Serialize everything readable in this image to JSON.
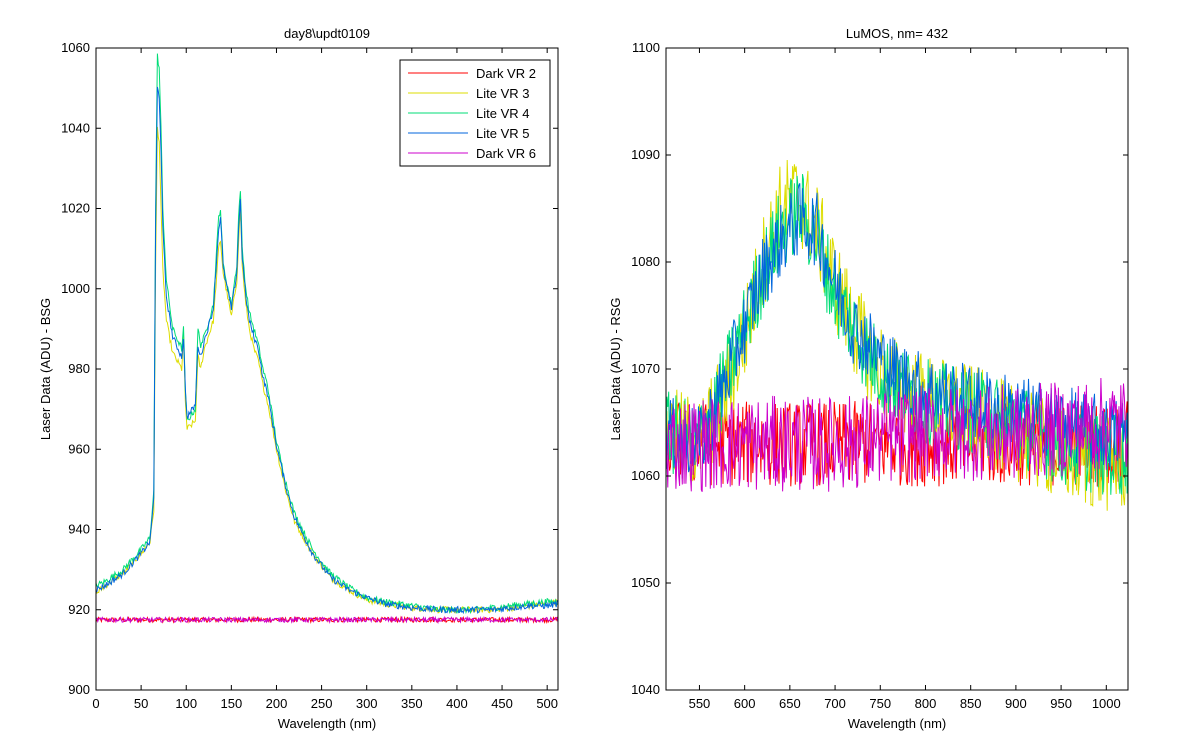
{
  "figure_background": "#ffffff",
  "chart_data": [
    {
      "type": "line",
      "title": "day8\\updt0109",
      "xlabel": "Wavelength (nm)",
      "ylabel": "Laser Data (ADU) - BSG",
      "xlim": [
        0,
        512
      ],
      "ylim": [
        900,
        1060
      ],
      "xticks": [
        0,
        50,
        100,
        150,
        200,
        250,
        300,
        350,
        400,
        450,
        500
      ],
      "yticks": [
        900,
        920,
        940,
        960,
        980,
        1000,
        1020,
        1040,
        1060
      ],
      "grid": false,
      "legend": "top-right",
      "series": [
        {
          "name": "Dark VR 2",
          "color": "#ff0000",
          "x": [
            0,
            100,
            200,
            300,
            400,
            512
          ],
          "y": [
            917.5,
            917.5,
            917.5,
            917.5,
            917.5,
            917.5
          ],
          "noise": 0.6
        },
        {
          "name": "Lite VR 3",
          "color": "#dddd00",
          "x": [
            0,
            10,
            30,
            50,
            60,
            64,
            66,
            68,
            70,
            72,
            74,
            78,
            85,
            95,
            97,
            99,
            101,
            110,
            113,
            116,
            120,
            130,
            136,
            138,
            141,
            150,
            156,
            158,
            160,
            162,
            166,
            170,
            175,
            180,
            185,
            190,
            200,
            210,
            220,
            240,
            260,
            280,
            300,
            320,
            350,
            380,
            400,
            420,
            440,
            460,
            480,
            500,
            512
          ],
          "y": [
            924,
            926,
            929,
            934,
            937,
            945,
            1005,
            1040,
            1037,
            1020,
            1005,
            992,
            984,
            980,
            988,
            972,
            965,
            967,
            983,
            980,
            985,
            992,
            1010,
            1012,
            1004,
            993,
            1002,
            1012,
            1020,
            1006,
            996,
            990,
            985,
            982,
            976,
            972,
            960,
            950,
            942,
            934,
            928,
            925,
            922.5,
            921.5,
            920.5,
            920,
            920,
            920,
            920,
            920.5,
            921,
            921.5,
            922
          ],
          "noise": 0.8
        },
        {
          "name": "Lite VR 4",
          "color": "#00dd77",
          "x": [
            0,
            10,
            30,
            50,
            60,
            64,
            66,
            68,
            70,
            72,
            74,
            78,
            85,
            95,
            97,
            99,
            101,
            110,
            113,
            116,
            120,
            130,
            136,
            138,
            141,
            150,
            156,
            158,
            160,
            162,
            166,
            170,
            175,
            180,
            185,
            190,
            200,
            210,
            220,
            240,
            260,
            280,
            300,
            320,
            350,
            380,
            400,
            420,
            440,
            460,
            480,
            500,
            512
          ],
          "y": [
            926,
            927,
            930,
            935,
            938,
            950,
            1020,
            1058,
            1055,
            1040,
            1020,
            1002,
            990,
            985,
            990,
            975,
            967,
            970,
            990,
            986,
            988,
            996,
            1018,
            1020,
            1006,
            996,
            1006,
            1018,
            1025,
            1010,
            1000,
            994,
            990,
            986,
            980,
            976,
            962,
            952,
            944,
            935,
            929,
            925.5,
            923,
            922,
            921,
            920,
            920,
            920,
            920.5,
            921,
            921.5,
            922,
            922
          ],
          "noise": 0.8
        },
        {
          "name": "Lite VR 5",
          "color": "#0066dd",
          "x": [
            0,
            10,
            30,
            50,
            60,
            64,
            66,
            68,
            70,
            72,
            74,
            78,
            85,
            95,
            97,
            99,
            101,
            110,
            113,
            116,
            120,
            130,
            136,
            138,
            141,
            150,
            156,
            158,
            160,
            162,
            166,
            170,
            175,
            180,
            185,
            190,
            200,
            210,
            220,
            240,
            260,
            280,
            300,
            320,
            350,
            380,
            400,
            420,
            440,
            460,
            480,
            500,
            512
          ],
          "y": [
            925,
            926,
            929,
            934,
            937,
            948,
            1015,
            1050,
            1048,
            1035,
            1015,
            998,
            988,
            983,
            988,
            975,
            968,
            971,
            986,
            983,
            987,
            995,
            1015,
            1018,
            1005,
            995,
            1004,
            1015,
            1022,
            1008,
            998,
            992,
            988,
            985,
            978,
            974,
            961,
            951,
            943,
            934,
            928,
            925,
            923,
            921.5,
            920.5,
            920,
            920,
            920,
            920,
            920.5,
            921,
            921,
            921.5
          ],
          "noise": 0.8
        },
        {
          "name": "Dark VR 6",
          "color": "#cc00cc",
          "x": [
            0,
            100,
            200,
            300,
            400,
            512
          ],
          "y": [
            917.5,
            917.5,
            917.5,
            917.5,
            917.5,
            917.5
          ],
          "noise": 0.6
        }
      ]
    },
    {
      "type": "line",
      "title": "LuMOS, nm= 432",
      "xlabel": "Wavelength (nm)",
      "ylabel": "Laser Data (ADU) - RSG",
      "xlim": [
        513,
        1024
      ],
      "ylim": [
        1040,
        1100
      ],
      "xticks": [
        550,
        600,
        650,
        700,
        750,
        800,
        850,
        900,
        950,
        1000
      ],
      "yticks": [
        1040,
        1050,
        1060,
        1070,
        1080,
        1090,
        1100
      ],
      "grid": false,
      "legend": "none",
      "series": [
        {
          "color": "#ff0000",
          "x": [
            513,
            600,
            700,
            800,
            900,
            1024
          ],
          "y": [
            1063,
            1063,
            1063,
            1063,
            1063,
            1063
          ],
          "noise": 4.0
        },
        {
          "color": "#dddd00",
          "x": [
            513,
            550,
            575,
            600,
            620,
            640,
            660,
            680,
            700,
            720,
            740,
            760,
            780,
            800,
            850,
            900,
            950,
            1000,
            1024
          ],
          "y": [
            1064,
            1063,
            1067,
            1073,
            1080,
            1085,
            1086,
            1083,
            1078,
            1074,
            1071,
            1069,
            1068,
            1067,
            1066,
            1064,
            1062,
            1061,
            1061
          ],
          "noise": 4.5
        },
        {
          "color": "#00dd77",
          "x": [
            513,
            550,
            575,
            600,
            620,
            640,
            660,
            680,
            700,
            720,
            740,
            760,
            780,
            800,
            850,
            900,
            950,
            1000,
            1024
          ],
          "y": [
            1064,
            1063,
            1068,
            1074,
            1079,
            1083,
            1085,
            1082,
            1077,
            1074,
            1071,
            1069,
            1068,
            1067,
            1066,
            1065,
            1063,
            1062,
            1062
          ],
          "noise": 4.0
        },
        {
          "color": "#0066dd",
          "x": [
            513,
            550,
            575,
            600,
            620,
            640,
            660,
            680,
            700,
            720,
            740,
            760,
            780,
            800,
            850,
            900,
            950,
            1000,
            1024
          ],
          "y": [
            1064,
            1063,
            1068,
            1074,
            1079,
            1082,
            1084,
            1083,
            1078,
            1074,
            1072,
            1070,
            1069,
            1068,
            1067,
            1066,
            1065,
            1064,
            1064
          ],
          "noise": 3.5
        },
        {
          "color": "#cc00cc",
          "x": [
            513,
            600,
            700,
            800,
            900,
            1024
          ],
          "y": [
            1063,
            1063,
            1063,
            1064,
            1064,
            1065
          ],
          "noise": 4.5
        }
      ]
    }
  ]
}
